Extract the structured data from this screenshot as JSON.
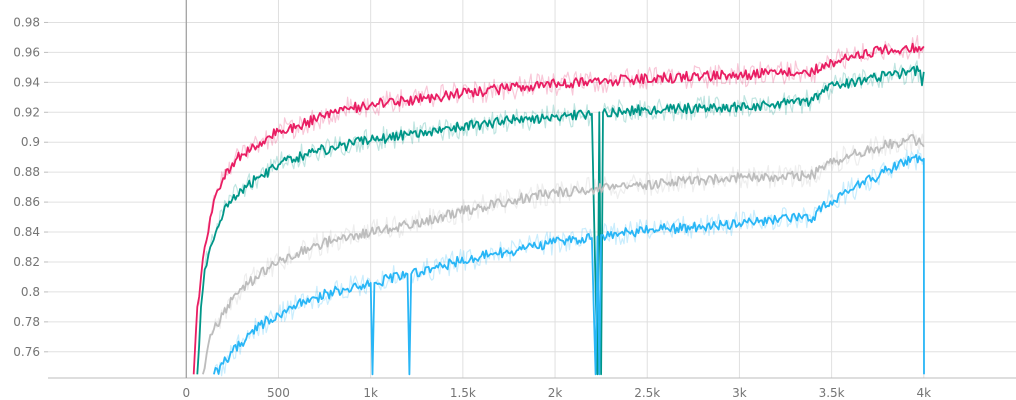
{
  "chart_data": {
    "type": "line",
    "title": "",
    "xlabel": "",
    "ylabel": "",
    "xlim": [
      -750,
      4500
    ],
    "ylim": [
      0.7425,
      0.995
    ],
    "grid": true,
    "x_ticks": [
      0,
      500,
      1000,
      1500,
      2000,
      2500,
      3000,
      3500,
      4000
    ],
    "x_tick_labels": [
      "0",
      "500",
      "1k",
      "1.5k",
      "2k",
      "2.5k",
      "3k",
      "3.5k",
      "4k"
    ],
    "y_ticks": [
      0.76,
      0.78,
      0.8,
      0.82,
      0.84,
      0.86,
      0.88,
      0.9,
      0.92,
      0.94,
      0.96,
      0.98
    ],
    "y_tick_labels": [
      "0.76",
      "0.78",
      "0.8",
      "0.82",
      "0.84",
      "0.86",
      "0.88",
      "0.9",
      "0.92",
      "0.94",
      "0.96",
      "0.98"
    ],
    "series": [
      {
        "color": "#e91e63",
        "x": [
          40,
          60,
          80,
          100,
          130,
          160,
          200,
          250,
          300,
          400,
          500,
          600,
          700,
          800,
          900,
          1000,
          1200,
          1400,
          1600,
          1800,
          2000,
          2200,
          2400,
          2600,
          2800,
          3000,
          3200,
          3400,
          3450,
          3600,
          3800,
          4000
        ],
        "y": [
          0.745,
          0.79,
          0.81,
          0.83,
          0.85,
          0.865,
          0.876,
          0.886,
          0.892,
          0.9,
          0.907,
          0.911,
          0.915,
          0.92,
          0.923,
          0.925,
          0.928,
          0.931,
          0.934,
          0.937,
          0.939,
          0.94,
          0.942,
          0.943,
          0.944,
          0.945,
          0.946,
          0.947,
          0.952,
          0.957,
          0.962,
          0.964
        ]
      },
      {
        "color": "#009688",
        "x": [
          60,
          80,
          100,
          130,
          160,
          200,
          250,
          300,
          400,
          500,
          600,
          700,
          800,
          900,
          1000,
          1200,
          1400,
          1600,
          1800,
          2000,
          2200,
          2230,
          2240,
          2250,
          2260,
          2400,
          2600,
          2800,
          3000,
          3200,
          3400,
          3450,
          3600,
          3800,
          3980,
          3990,
          4000
        ],
        "y": [
          0.745,
          0.79,
          0.815,
          0.83,
          0.84,
          0.852,
          0.862,
          0.868,
          0.877,
          0.885,
          0.89,
          0.894,
          0.896,
          0.899,
          0.901,
          0.905,
          0.909,
          0.912,
          0.915,
          0.917,
          0.919,
          0.745,
          0.92,
          0.745,
          0.92,
          0.921,
          0.922,
          0.923,
          0.924,
          0.925,
          0.928,
          0.935,
          0.94,
          0.945,
          0.948,
          0.938,
          0.947
        ]
      },
      {
        "color": "#bdbdbd",
        "x": [
          90,
          120,
          150,
          200,
          250,
          300,
          400,
          500,
          600,
          700,
          800,
          900,
          1000,
          1200,
          1400,
          1600,
          1800,
          2000,
          2200,
          2400,
          2600,
          2800,
          3000,
          3200,
          3400,
          3450,
          3600,
          3800,
          3950,
          4000
        ],
        "y": [
          0.745,
          0.765,
          0.775,
          0.785,
          0.795,
          0.802,
          0.812,
          0.82,
          0.826,
          0.831,
          0.835,
          0.838,
          0.84,
          0.845,
          0.851,
          0.857,
          0.862,
          0.866,
          0.869,
          0.871,
          0.873,
          0.875,
          0.876,
          0.877,
          0.878,
          0.884,
          0.891,
          0.898,
          0.902,
          0.897
        ]
      },
      {
        "color": "#29b6f6",
        "x": [
          150,
          200,
          250,
          300,
          350,
          400,
          500,
          600,
          700,
          800,
          900,
          1000,
          1010,
          1020,
          1100,
          1200,
          1210,
          1220,
          1400,
          1600,
          1800,
          2000,
          2200,
          2220,
          2230,
          2240,
          2250,
          2260,
          2400,
          2600,
          2800,
          3000,
          3200,
          3400,
          3450,
          3600,
          3800,
          3900,
          4000,
          4001
        ],
        "y": [
          0.745,
          0.752,
          0.76,
          0.766,
          0.773,
          0.778,
          0.785,
          0.791,
          0.796,
          0.8,
          0.803,
          0.806,
          0.745,
          0.806,
          0.809,
          0.812,
          0.745,
          0.812,
          0.818,
          0.824,
          0.828,
          0.833,
          0.836,
          0.745,
          0.837,
          0.745,
          0.838,
          0.838,
          0.84,
          0.842,
          0.844,
          0.846,
          0.848,
          0.85,
          0.858,
          0.868,
          0.881,
          0.888,
          0.889,
          0.745
        ]
      }
    ]
  }
}
